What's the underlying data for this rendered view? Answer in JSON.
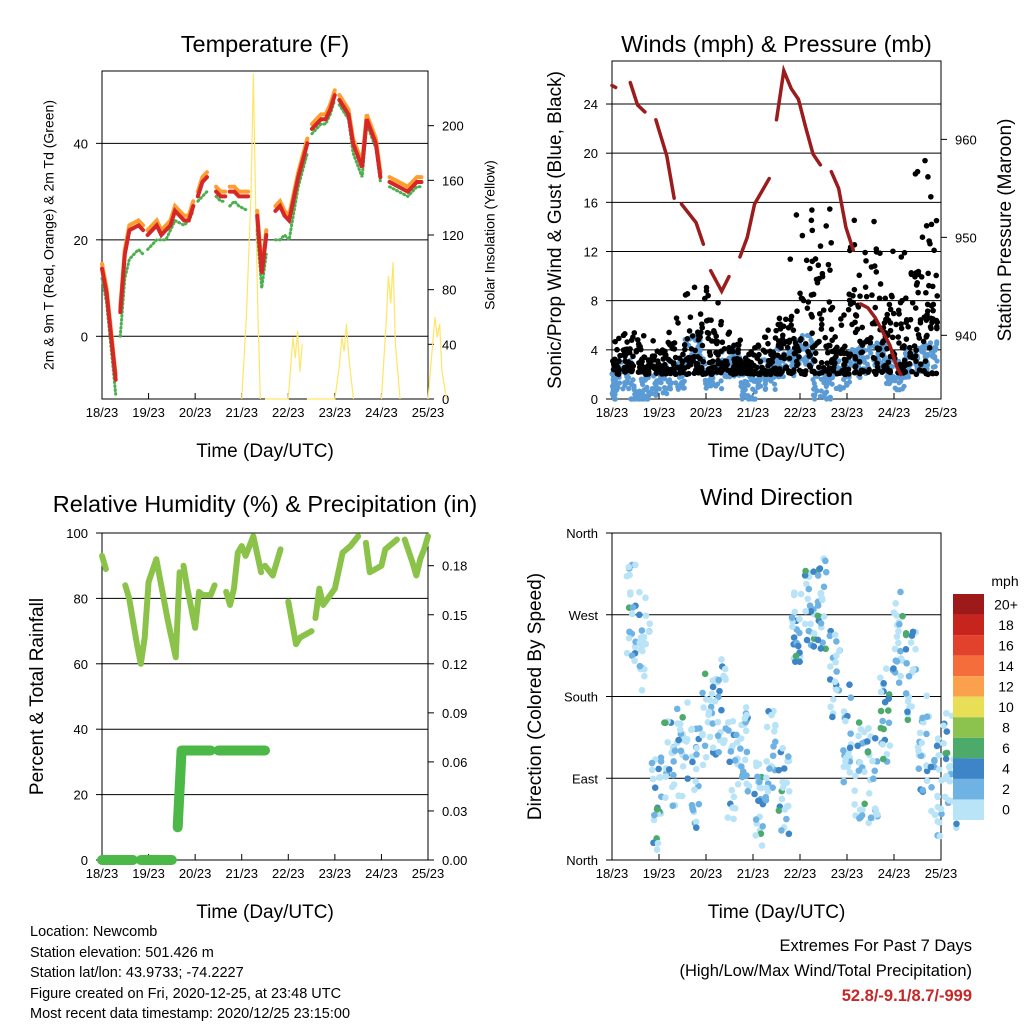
{
  "chart_data": [
    {
      "type": "line",
      "title": "Temperature (F)",
      "xlabel": "Time (Day/UTC)",
      "ylabel": "2m & 9m T (Red, Orange) & 2m Td (Green)",
      "y2label": "Solar Insolation (Yellow)",
      "x_ticks": [
        "18/23",
        "19/23",
        "20/23",
        "21/23",
        "22/23",
        "23/23",
        "24/23",
        "25/23"
      ],
      "ylim": [
        -13,
        55
      ],
      "y_ticks": [
        0,
        20,
        40
      ],
      "y2lim": [
        0,
        240
      ],
      "y2_ticks": [
        0,
        40,
        80,
        120,
        160,
        200
      ],
      "grid": true,
      "series": [
        {
          "name": "2m T",
          "color": "#d62728",
          "x": [
            0,
            0.1,
            0.3,
            0.4,
            0.5,
            0.6,
            0.8,
            0.9,
            1.0,
            1.2,
            1.3,
            1.4,
            1.5,
            1.6,
            1.8,
            1.9,
            2.0,
            2.1,
            2.2,
            2.3,
            2.5,
            2.6,
            2.7,
            2.8,
            2.9,
            3.0,
            3.2,
            3.4,
            3.5,
            3.6,
            3.8,
            3.9,
            4.0,
            4.1,
            4.3,
            4.5,
            4.6,
            4.8,
            4.9,
            5.0,
            5.1,
            5.2,
            5.4,
            5.5,
            5.7,
            5.8,
            6.0,
            6.1,
            6.3,
            6.5,
            6.7,
            6.8,
            6.9,
            7.0
          ],
          "y": [
            14,
            9,
            -9,
            5,
            17,
            22,
            23,
            22,
            21,
            23,
            21,
            22,
            23,
            26,
            24,
            24,
            27,
            29,
            32,
            33,
            30,
            29,
            29,
            30,
            30,
            29,
            29,
            25,
            13,
            21,
            26,
            27,
            25,
            24,
            33,
            40,
            43,
            45,
            45,
            47,
            50,
            49,
            46,
            40,
            35,
            45,
            40,
            33,
            32,
            31,
            30,
            31,
            32,
            32
          ]
        },
        {
          "name": "9m T",
          "color": "#ff9e2c",
          "x": [
            0,
            0.1,
            0.3,
            0.4,
            0.5,
            0.6,
            0.8,
            0.9,
            1.0,
            1.2,
            1.3,
            1.4,
            1.5,
            1.6,
            1.8,
            1.9,
            2.0,
            2.1,
            2.2,
            2.3,
            2.5,
            2.6,
            2.7,
            2.8,
            2.9,
            3.0,
            3.2,
            3.4,
            3.5,
            3.6,
            3.8,
            3.9,
            4.0,
            4.1,
            4.3,
            4.5,
            4.6,
            4.8,
            4.9,
            5.0,
            5.1,
            5.2,
            5.4,
            5.5,
            5.7,
            5.8,
            6.0,
            6.1,
            6.3,
            6.5,
            6.7,
            6.8,
            6.9,
            7.0
          ],
          "y": [
            15,
            10,
            -8,
            6,
            18,
            23,
            24,
            23,
            22,
            24,
            22,
            23,
            24,
            27,
            25,
            25,
            28,
            30,
            33,
            34,
            31,
            30,
            30,
            31,
            31,
            30,
            30,
            26,
            14,
            22,
            27,
            28,
            26,
            25,
            34,
            41,
            44,
            46,
            46,
            48,
            51,
            50,
            47,
            41,
            36,
            46,
            41,
            34,
            33,
            32,
            31,
            32,
            33,
            33
          ]
        },
        {
          "name": "2m Td",
          "color": "#4caf50",
          "x": [
            0,
            0.1,
            0.3,
            0.4,
            0.5,
            0.6,
            0.8,
            0.9,
            1.0,
            1.2,
            1.3,
            1.4,
            1.5,
            1.6,
            1.8,
            1.9,
            2.0,
            2.1,
            2.2,
            2.3,
            2.5,
            2.6,
            2.7,
            2.8,
            2.9,
            3.0,
            3.2,
            3.4,
            3.5,
            3.6,
            3.8,
            3.9,
            4.0,
            4.1,
            4.3,
            4.5,
            4.6,
            4.8,
            4.9,
            5.0,
            5.1,
            5.2,
            5.4,
            5.5,
            5.7,
            5.8,
            6.0,
            6.1,
            6.3,
            6.5,
            6.7,
            6.8,
            6.9,
            7.0
          ],
          "y": [
            12,
            7,
            -12,
            0,
            12,
            16,
            18,
            17,
            18,
            20,
            20,
            20,
            22,
            24,
            23,
            24,
            26,
            28,
            29,
            30,
            29,
            28,
            28,
            27,
            28,
            27,
            26,
            22,
            10,
            17,
            20,
            20,
            21,
            20,
            31,
            38,
            42,
            44,
            44,
            46,
            49,
            48,
            45,
            38,
            33,
            44,
            39,
            32,
            31,
            30,
            29,
            30,
            31,
            31
          ]
        },
        {
          "name": "Solar Insolation",
          "color": "#ffe566",
          "axis": "y2",
          "x": [
            3.5,
            3.6,
            3.7,
            3.75,
            3.8,
            3.85,
            3.9,
            4.0,
            4.5,
            4.6,
            4.65,
            4.7,
            4.75,
            4.8,
            4.9,
            5.5,
            5.6,
            5.65,
            5.7,
            5.75,
            5.8,
            5.9,
            6.5,
            6.6,
            6.65,
            6.7,
            6.75,
            6.8,
            6.9,
            7.5,
            7.6,
            7.65,
            7.7,
            7.75,
            7.8,
            7.9
          ],
          "y": [
            0,
            60,
            150,
            238,
            140,
            60,
            0,
            0,
            0,
            45,
            30,
            50,
            20,
            40,
            0,
            0,
            25,
            45,
            35,
            55,
            30,
            0,
            0,
            55,
            90,
            70,
            100,
            40,
            0,
            0,
            40,
            60,
            45,
            55,
            20,
            0
          ]
        }
      ]
    },
    {
      "type": "scatter",
      "title": "Winds (mph) & Pressure (mb)",
      "xlabel": "Time (Day/UTC)",
      "ylabel": "Sonic/Prop Wind & Gust (Blue, Black)",
      "y2label": "Station Pressure (Maroon)",
      "x_ticks": [
        "18/23",
        "19/23",
        "20/23",
        "21/23",
        "22/23",
        "23/23",
        "24/23",
        "25/23"
      ],
      "ylim": [
        0,
        27.5
      ],
      "y_ticks": [
        0,
        4,
        8,
        12,
        16,
        20,
        24
      ],
      "y2lim": [
        933.5,
        968
      ],
      "y2_ticks": [
        940,
        950,
        960
      ],
      "grid": true,
      "series": [
        {
          "name": "Wind",
          "color": "#5b9bd5",
          "x": [
            0,
            0.1,
            0.5,
            1.0,
            1.5,
            2.0,
            2.5,
            3.0,
            3.5,
            4.0,
            4.5,
            5.0,
            5.5,
            6.0,
            6.5,
            7.0,
            7.5,
            8.0,
            8.5,
            8.9
          ],
          "y": [
            1,
            2,
            0.5,
            1.5,
            2,
            4,
            2,
            3,
            1,
            2,
            3,
            4,
            1,
            2,
            3,
            3.5,
            2,
            3,
            3.5,
            3
          ]
        },
        {
          "name": "Gust",
          "color": "#000000",
          "x": [
            0,
            0.5,
            1.0,
            1.5,
            2.0,
            2.5,
            3.0,
            3.5,
            4.0,
            4.5,
            5.0,
            5.5,
            6.0,
            6.5,
            7.0,
            7.5,
            8.0,
            8.5,
            8.9
          ],
          "y": [
            2,
            4,
            1,
            3,
            5,
            9,
            4,
            3,
            1,
            4,
            10,
            19,
            6,
            8,
            14,
            8,
            12,
            20,
            25
          ]
        },
        {
          "name": "Pressure",
          "color": "#9b1c1c",
          "axis": "y2",
          "x": [
            0,
            0.1,
            0.5,
            0.7,
            0.9,
            1.2,
            1.5,
            1.7,
            1.9,
            2.3,
            2.5,
            2.7,
            3.0,
            3.2,
            3.5,
            3.7,
            3.9,
            4.3,
            4.5,
            4.7,
            4.9,
            5.1,
            5.3,
            5.5,
            5.7,
            6.0,
            6.2,
            6.4,
            6.6,
            6.8,
            7.0,
            7.2,
            7.4,
            7.6,
            7.8,
            7.9
          ],
          "y": [
            965.5,
            965.3,
            965.8,
            963.5,
            962.8,
            962.0,
            958.3,
            954.0,
            953.4,
            951.5,
            949.3,
            946.6,
            944.5,
            946,
            948,
            950,
            953.4,
            956,
            962,
            967,
            965.2,
            964.1,
            961.2,
            958.5,
            957.4,
            956.7,
            955,
            951,
            948.7,
            943.2,
            942.8,
            941.8,
            940.4,
            939,
            936.7,
            936
          ]
        }
      ]
    },
    {
      "type": "line",
      "title": "Relative Humidity (%) & Precipitation (in)",
      "xlabel": "Time (Day/UTC)",
      "ylabel": "Percent & Total Rainfall",
      "x_ticks": [
        "18/23",
        "19/23",
        "20/23",
        "21/23",
        "22/23",
        "23/23",
        "24/23",
        "25/23"
      ],
      "ylim": [
        0,
        100
      ],
      "y_ticks": [
        0,
        20,
        40,
        60,
        80,
        100
      ],
      "y2lim": [
        0,
        0.2
      ],
      "y2_ticks": [
        "0.00",
        "0.03",
        "0.06",
        "0.09",
        "0.12",
        "0.15",
        "0.18"
      ],
      "grid": true,
      "series": [
        {
          "name": "Relative Humidity",
          "color": "#8bc34a",
          "x": [
            0,
            0.05,
            0.1,
            0.6,
            0.7,
            0.9,
            1.0,
            1.1,
            1.2,
            1.4,
            1.7,
            1.9,
            2.0,
            2.1,
            2.2,
            2.4,
            2.5,
            2.6,
            2.8,
            2.9,
            3.2,
            3.3,
            3.4,
            3.5,
            3.6,
            3.7,
            3.9,
            4.1,
            4.2,
            4.4,
            4.6,
            4.8,
            5.0,
            5.1,
            5.4,
            5.5,
            5.6,
            5.7,
            6.0,
            6.2,
            6.4,
            6.6,
            6.8,
            6.9,
            7.2,
            7.3,
            7.4,
            7.6,
            7.8,
            8.0,
            8.1,
            8.2,
            8.3,
            8.4
          ],
          "y": [
            93,
            91,
            89,
            84,
            80,
            66,
            60,
            68,
            85,
            92,
            73,
            62,
            88,
            90,
            83,
            71,
            82,
            81,
            81,
            84,
            82,
            78,
            83,
            94,
            96,
            93,
            99,
            88,
            90,
            87,
            95,
            79,
            66,
            68,
            70,
            74,
            83,
            78,
            83,
            94,
            96,
            99,
            97,
            88,
            90,
            95,
            96,
            98,
            98,
            91,
            87,
            92,
            95,
            99
          ]
        },
        {
          "name": "Precipitation",
          "color": "#4cb848",
          "axis": "y2",
          "x": [
            0,
            0.2,
            0.5,
            0.8,
            1.0,
            1.3,
            1.6,
            1.8,
            1.95,
            2.05,
            2.3,
            2.5,
            2.8,
            3.0,
            3.3,
            3.6,
            3.9,
            4.2
          ],
          "y": [
            0,
            0,
            0,
            0,
            0,
            0,
            0,
            0,
            0.02,
            0.067,
            0.067,
            0.067,
            0.067,
            0.067,
            0.067,
            0.067,
            0.067,
            0.067
          ]
        }
      ]
    },
    {
      "type": "scatter",
      "title": "Wind Direction",
      "xlabel": "Time (Day/UTC)",
      "ylabel": "Direction (Colored By Speed)",
      "x_ticks": [
        "18/23",
        "19/23",
        "20/23",
        "21/23",
        "22/23",
        "23/23",
        "24/23",
        "25/23"
      ],
      "y_ticks": [
        "North",
        "East",
        "South",
        "West",
        "North"
      ],
      "ylim": [
        0,
        360
      ],
      "grid": true,
      "colorbar_label": "mph",
      "colorbar": [
        {
          "label": "20+",
          "color": "#9e1a1a"
        },
        {
          "label": "18",
          "color": "#c8241e"
        },
        {
          "label": "16",
          "color": "#e2412b"
        },
        {
          "label": "14",
          "color": "#f46d3b"
        },
        {
          "label": "12",
          "color": "#fba14e"
        },
        {
          "label": "10",
          "color": "#e9df57"
        },
        {
          "label": "8",
          "color": "#8cc24e"
        },
        {
          "label": "6",
          "color": "#4caa6a"
        },
        {
          "label": "4",
          "color": "#3d85c6"
        },
        {
          "label": "2",
          "color": "#6fb3e4"
        },
        {
          "label": "0",
          "color": "#b9e3f6"
        }
      ],
      "series": [
        {
          "name": "Direction",
          "x": [
            0,
            0.3,
            0.6,
            0.9,
            1.2,
            1.5,
            1.8,
            2.1,
            2.4,
            2.7,
            3.0,
            3.3,
            3.6,
            3.9,
            4.2,
            4.5,
            4.8,
            5.1,
            5.4,
            5.7,
            6.0,
            6.3,
            6.6,
            6.9,
            7.2,
            7.5,
            7.8
          ],
          "y": [
            270,
            240,
            60,
            110,
            120,
            90,
            150,
            170,
            100,
            130,
            70,
            110,
            80,
            260,
            270,
            280,
            200,
            140,
            100,
            90,
            160,
            250,
            200,
            130,
            80,
            110,
            90
          ]
        }
      ]
    }
  ],
  "footer": {
    "location": "Location: Newcomb",
    "elevation": "Station elevation: 501.426 m",
    "latlon": "Station lat/lon: 43.9733; -74.2227",
    "created": "Figure created on Fri, 2020-12-25, at 23:48 UTC",
    "recent": "Most recent data timestamp: 2020/12/25 23:15:00",
    "extremes_title": "Extremes For Past 7 Days",
    "extremes_subtitle": "(High/Low/Max Wind/Total Precipitation)",
    "extremes_values": "52.8/-9.1/8.7/-999"
  }
}
